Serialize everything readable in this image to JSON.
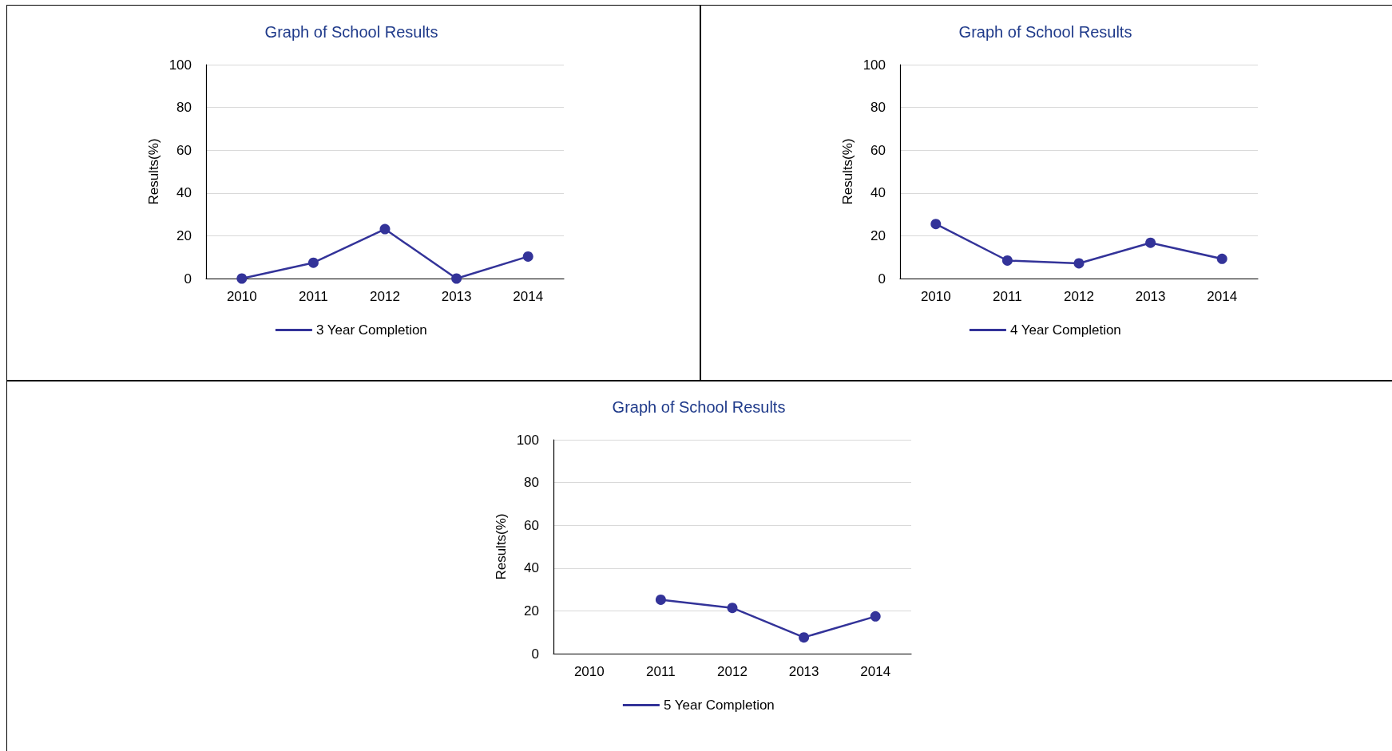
{
  "chart_data": [
    {
      "type": "line",
      "title": "Graph of School Results",
      "ylabel": "Results(%)",
      "categories": [
        "2010",
        "2011",
        "2012",
        "2013",
        "2014"
      ],
      "series": [
        {
          "name": "3 Year Completion",
          "color": "#333399",
          "values": [
            0,
            7.4,
            23.1,
            0,
            10.3
          ]
        }
      ],
      "ylim": [
        0,
        100
      ],
      "yticks": [
        0,
        20,
        40,
        60,
        80,
        100
      ],
      "grid": "y",
      "legend": "bottom",
      "marker": "circle",
      "line_style": "solid"
    },
    {
      "type": "line",
      "title": "Graph of School Results",
      "ylabel": "Results(%)",
      "categories": [
        "2010",
        "2011",
        "2012",
        "2013",
        "2014"
      ],
      "series": [
        {
          "name": "4 Year Completion",
          "color": "#333399",
          "values": [
            25.5,
            8.4,
            7.1,
            16.7,
            9.2
          ]
        }
      ],
      "ylim": [
        0,
        100
      ],
      "yticks": [
        0,
        20,
        40,
        60,
        80,
        100
      ],
      "grid": "y",
      "legend": "bottom",
      "marker": "circle",
      "line_style": "solid"
    },
    {
      "type": "line",
      "title": "Graph of School Results",
      "ylabel": "Results(%)",
      "categories": [
        "2010",
        "2011",
        "2012",
        "2013",
        "2014"
      ],
      "series": [
        {
          "name": "5 Year Completion",
          "color": "#333399",
          "values": [
            null,
            25.2,
            21.4,
            7.6,
            17.4
          ]
        }
      ],
      "ylim": [
        0,
        100
      ],
      "yticks": [
        0,
        20,
        40,
        60,
        80,
        100
      ],
      "grid": "y",
      "legend": "bottom",
      "marker": "circle",
      "line_style": "solid"
    }
  ]
}
